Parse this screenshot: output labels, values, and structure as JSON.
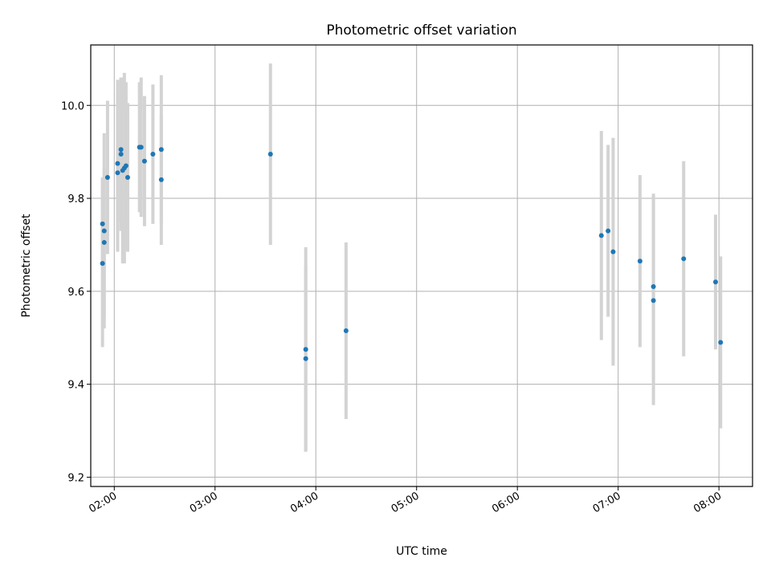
{
  "chart_data": {
    "type": "scatter",
    "title": "Photometric offset variation",
    "xlabel": "UTC time",
    "ylabel": "Photometric offset",
    "xlim": [
      "01:46",
      "08:20"
    ],
    "ylim": [
      9.18,
      10.13
    ],
    "x_ticks": [
      "02:00",
      "03:00",
      "04:00",
      "05:00",
      "06:00",
      "07:00",
      "08:00"
    ],
    "y_ticks": [
      "9.2",
      "9.4",
      "9.6",
      "9.8",
      "10.0"
    ],
    "y_tick_values": [
      9.2,
      9.4,
      9.6,
      9.8,
      10.0
    ],
    "grid": true,
    "marker_color": "#1f77b4",
    "errorbar_color": "#d3d3d3",
    "series": [
      {
        "points": [
          {
            "x": "01:53",
            "y": 9.66,
            "err": 0.18
          },
          {
            "x": "01:53",
            "y": 9.745,
            "err": 0.1
          },
          {
            "x": "01:54",
            "y": 9.73,
            "err": 0.21
          },
          {
            "x": "01:54",
            "y": 9.705,
            "err": 0.16
          },
          {
            "x": "01:56",
            "y": 9.845,
            "err": 0.165
          },
          {
            "x": "02:02",
            "y": 9.855,
            "err": 0.17
          },
          {
            "x": "02:02",
            "y": 9.875,
            "err": 0.18
          },
          {
            "x": "02:04",
            "y": 9.905,
            "err": 0.155
          },
          {
            "x": "02:04",
            "y": 9.895,
            "err": 0.165
          },
          {
            "x": "02:05",
            "y": 9.86,
            "err": 0.2
          },
          {
            "x": "02:06",
            "y": 9.865,
            "err": 0.205
          },
          {
            "x": "02:07",
            "y": 9.87,
            "err": 0.18
          },
          {
            "x": "02:08",
            "y": 9.845,
            "err": 0.16
          },
          {
            "x": "02:15",
            "y": 9.91,
            "err": 0.14
          },
          {
            "x": "02:16",
            "y": 9.91,
            "err": 0.15
          },
          {
            "x": "02:18",
            "y": 9.88,
            "err": 0.14
          },
          {
            "x": "02:23",
            "y": 9.895,
            "err": 0.15
          },
          {
            "x": "02:28",
            "y": 9.84,
            "err": 0.14
          },
          {
            "x": "02:28",
            "y": 9.905,
            "err": 0.16
          },
          {
            "x": "03:33",
            "y": 9.895,
            "err": 0.195
          },
          {
            "x": "03:54",
            "y": 9.475,
            "err": 0.22
          },
          {
            "x": "03:54",
            "y": 9.455,
            "err": 0.2
          },
          {
            "x": "04:18",
            "y": 9.515,
            "err": 0.19
          },
          {
            "x": "06:50",
            "y": 9.72,
            "err": 0.225
          },
          {
            "x": "06:54",
            "y": 9.73,
            "err": 0.185
          },
          {
            "x": "06:57",
            "y": 9.685,
            "err": 0.245
          },
          {
            "x": "07:13",
            "y": 9.665,
            "err": 0.185
          },
          {
            "x": "07:21",
            "y": 9.61,
            "err": 0.2
          },
          {
            "x": "07:21",
            "y": 9.58,
            "err": 0.225
          },
          {
            "x": "07:39",
            "y": 9.67,
            "err": 0.21
          },
          {
            "x": "07:58",
            "y": 9.62,
            "err": 0.145
          },
          {
            "x": "08:01",
            "y": 9.49,
            "err": 0.185
          }
        ]
      }
    ]
  }
}
